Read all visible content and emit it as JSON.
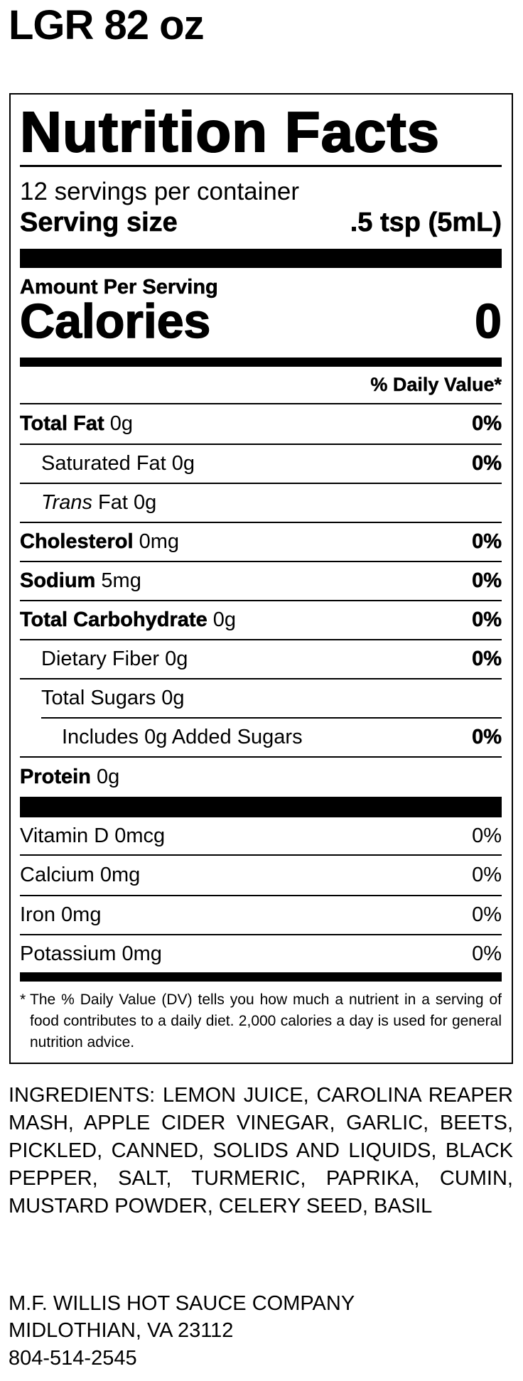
{
  "product_title": "LGR 82 oz",
  "label": {
    "title": "Nutrition Facts",
    "servings_per_container": "12 servings per container",
    "serving_size_label": "Serving size",
    "serving_size_value": ".5 tsp (5mL)",
    "amount_per_serving": "Amount Per Serving",
    "calories_label": "Calories",
    "calories_value": "0",
    "daily_value_header": "% Daily Value*",
    "nutrients": [
      {
        "name": "Total Fat",
        "amount": "0g",
        "dv": "0%",
        "bold": true,
        "indent": 0
      },
      {
        "name": "Saturated Fat",
        "amount": "0g",
        "dv": "0%",
        "bold": false,
        "indent": 1
      },
      {
        "name": "Trans",
        "name_suffix": "Fat",
        "amount": "0g",
        "dv": "",
        "bold": false,
        "italic_prefix": true,
        "indent": 1
      },
      {
        "name": "Cholesterol",
        "amount": "0mg",
        "dv": "0%",
        "bold": true,
        "indent": 0
      },
      {
        "name": "Sodium",
        "amount": "5mg",
        "dv": "0%",
        "bold": true,
        "indent": 0
      },
      {
        "name": "Total Carbohydrate",
        "amount": "0g",
        "dv": "0%",
        "bold": true,
        "indent": 0
      },
      {
        "name": "Dietary Fiber",
        "amount": "0g",
        "dv": "0%",
        "bold": false,
        "indent": 1
      },
      {
        "name": "Total Sugars",
        "amount": "0g",
        "dv": "",
        "bold": false,
        "indent": 1
      },
      {
        "name": "Includes 0g Added Sugars",
        "amount": "",
        "dv": "0%",
        "bold": false,
        "indent": 2
      },
      {
        "name": "Protein",
        "amount": "0g",
        "dv": "",
        "bold": true,
        "indent": 0
      }
    ],
    "vitamins": [
      {
        "name": "Vitamin D",
        "amount": "0mcg",
        "dv": "0%"
      },
      {
        "name": "Calcium",
        "amount": "0mg",
        "dv": "0%"
      },
      {
        "name": "Iron",
        "amount": "0mg",
        "dv": "0%"
      },
      {
        "name": "Potassium",
        "amount": "0mg",
        "dv": "0%"
      }
    ],
    "footnote_star": "*",
    "footnote": "The % Daily Value (DV) tells you how much a nutrient in a serving of food contributes to a daily diet. 2,000 calories a day is used for general nutrition advice."
  },
  "ingredients": "INGREDIENTS: LEMON JUICE, CAROLINA REAPER MASH, APPLE CIDER VINEGAR, GARLIC, BEETS, PICKLED, CANNED, SOLIDS AND LIQUIDS, BLACK PEPPER, SALT, TURMERIC, PAPRIKA, CUMIN, MUSTARD POWDER, CELERY SEED, BASIL",
  "company": {
    "name": "M.F. WILLIS HOT SAUCE COMPANY",
    "city": "MIDLOTHIAN, VA 23112",
    "phone": "804-514-2545"
  }
}
